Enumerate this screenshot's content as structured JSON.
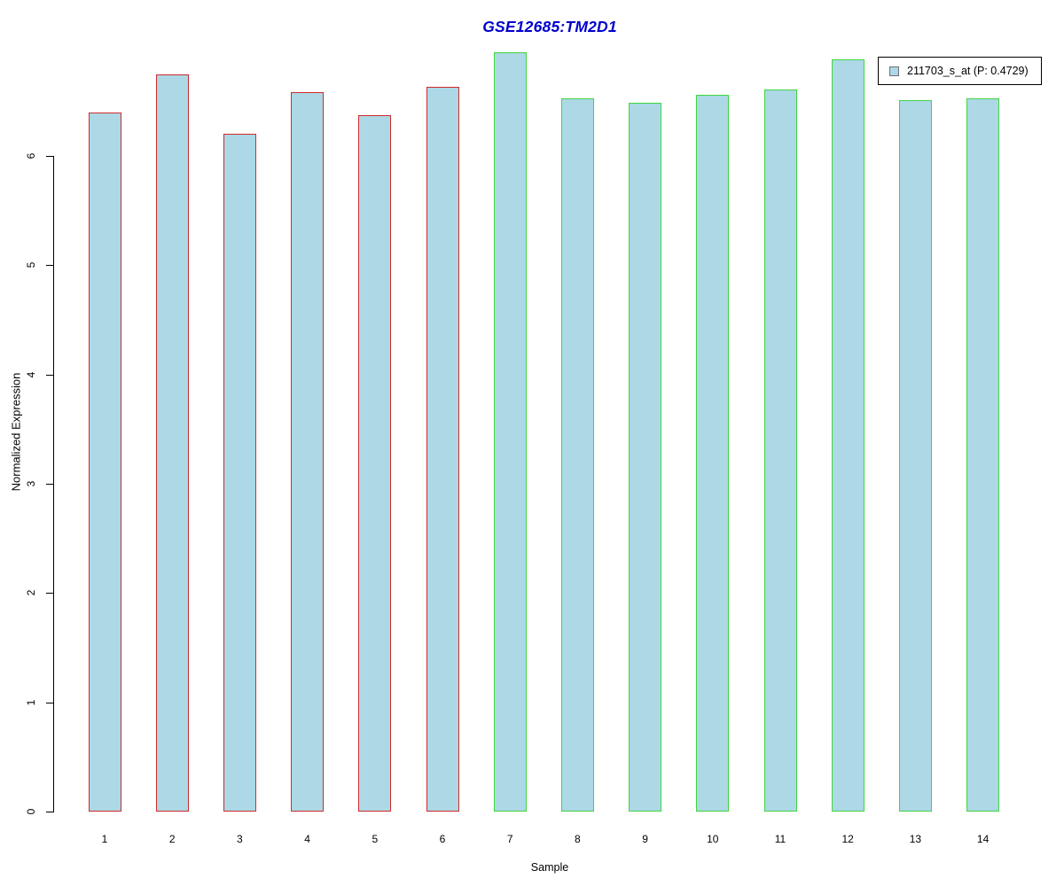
{
  "chart_data": {
    "type": "bar",
    "title": "GSE12685:TM2D1",
    "title_color": "#0000CC",
    "xlabel": "Sample",
    "ylabel": "Normalized Expression",
    "categories": [
      "1",
      "2",
      "3",
      "4",
      "5",
      "6",
      "7",
      "8",
      "9",
      "10",
      "11",
      "12",
      "13",
      "14"
    ],
    "series": [
      {
        "name": "211703_s_at",
        "values": [
          6.4,
          6.75,
          6.2,
          6.58,
          6.37,
          6.63,
          6.95,
          6.53,
          6.49,
          6.56,
          6.61,
          6.88,
          6.51,
          6.53
        ]
      }
    ],
    "bar_fill_color": "#ADD8E6",
    "bar_border_colors": [
      "#CC2B2B",
      "#CC2B2B",
      "#CC2B2B",
      "#CC2B2B",
      "#CC2B2B",
      "#CC2B2B",
      "#3FD63F",
      "#3FD63F",
      "#3FD63F",
      "#3FD63F",
      "#3FD63F",
      "#3FD63F",
      "#3FD63F",
      "#3FD63F"
    ],
    "group_colors": {
      "red_outline_samples": "1-6",
      "green_outline_samples": "7-14"
    },
    "ylim": [
      0,
      7
    ],
    "yticks": [
      "0",
      "1",
      "2",
      "3",
      "4",
      "5",
      "6"
    ],
    "grid": false,
    "legend": {
      "label": "211703_s_at (P: 0.4729)",
      "position": "top-right",
      "swatch_fill": "#ADD8E6",
      "swatch_border": "#707070"
    }
  }
}
